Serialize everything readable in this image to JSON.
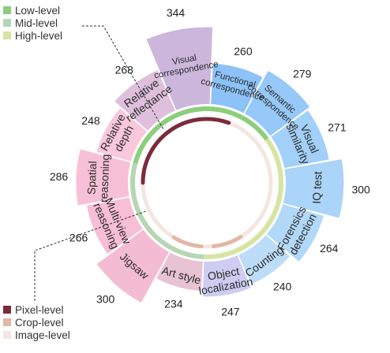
{
  "chart_data": {
    "type": "pie",
    "title": "",
    "level_legend": [
      {
        "label": "Low-level",
        "color": "#8cce7c"
      },
      {
        "label": "Mid-level",
        "color": "#b4d6b4"
      },
      {
        "label": "High-level",
        "color": "#d6e4a2"
      }
    ],
    "granularity_legend": [
      {
        "label": "Pixel-level",
        "color": "#7a2b3c"
      },
      {
        "label": "Crop-level",
        "color": "#e2b7a6"
      },
      {
        "label": "Image-level",
        "color": "#f4e6e0"
      }
    ],
    "tasks": [
      {
        "name": "Functional correspondence",
        "lines": [
          "Functional",
          "correspondence"
        ],
        "count": 260,
        "color": "#8cc2f8",
        "level": "Low-level"
      },
      {
        "name": "Semantic correspondence",
        "lines": [
          "Semantic",
          "correspondence"
        ],
        "count": 279,
        "color": "#96c8f8",
        "level": "Low-level"
      },
      {
        "name": "Visual similarity",
        "lines": [
          "Visual",
          "similarity"
        ],
        "count": 271,
        "color": "#a3d0f8",
        "level": "High-level"
      },
      {
        "name": "IQ test",
        "lines": [
          "IQ test"
        ],
        "count": 300,
        "color": "#aad4f8",
        "level": "High-level"
      },
      {
        "name": "Forensics detection",
        "lines": [
          "Forensics",
          "detection"
        ],
        "count": 264,
        "color": "#b2d8f8",
        "level": "High-level"
      },
      {
        "name": "Counting",
        "lines": [
          "Counting"
        ],
        "count": 240,
        "color": "#bcdcf8",
        "level": "High-level"
      },
      {
        "name": "Object localization",
        "lines": [
          "Object",
          "localization"
        ],
        "count": 247,
        "color": "#cdcdf2",
        "level": "High-level"
      },
      {
        "name": "Art style",
        "lines": [
          "Art style"
        ],
        "count": 234,
        "color": "#e8c4d2",
        "level": "Mid-level"
      },
      {
        "name": "Jigsaw",
        "lines": [
          "Jigsaw"
        ],
        "count": 300,
        "color": "#f4bcd2",
        "level": "Mid-level"
      },
      {
        "name": "Multi-view reasoning",
        "lines": [
          "Multi-view",
          "reasoning"
        ],
        "count": 266,
        "color": "#f7bed4",
        "level": "Mid-level"
      },
      {
        "name": "Spatial reasoning",
        "lines": [
          "Spatial",
          "reasoning"
        ],
        "count": 286,
        "color": "#f8c0d6",
        "level": "Mid-level"
      },
      {
        "name": "Relative depth",
        "lines": [
          "Relative",
          "depth"
        ],
        "count": 248,
        "color": "#f9c8da",
        "level": "Low-level"
      },
      {
        "name": "Relative reflectance",
        "lines": [
          "Relative",
          "reflectance"
        ],
        "count": 268,
        "color": "#dfc0dc",
        "level": "Low-level"
      },
      {
        "name": "Visual correspondence",
        "lines": [
          "Visual",
          "correspondence"
        ],
        "count": 344,
        "color": "#cdb6dc",
        "level": "Low-level"
      }
    ]
  }
}
